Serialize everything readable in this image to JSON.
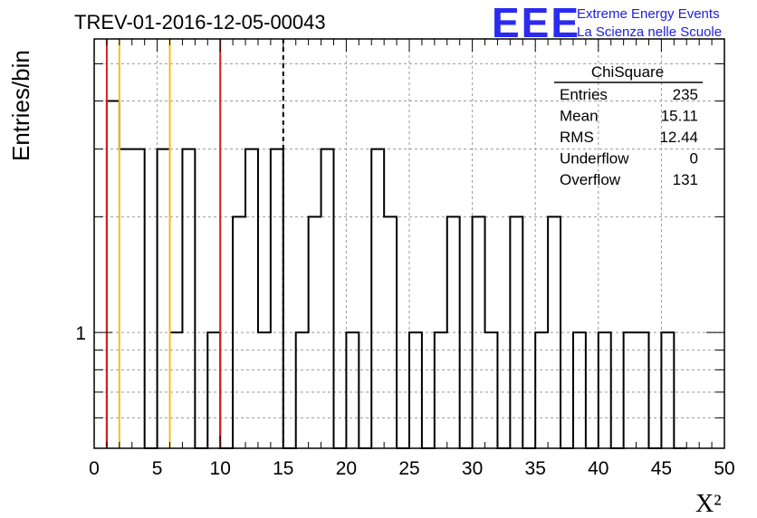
{
  "chart_data": {
    "type": "histogram",
    "title": "TREV-01-2016-12-05-00043",
    "xlabel": "X²",
    "ylabel": "Entries/bin",
    "xlim": [
      0,
      50
    ],
    "ylog": true,
    "ylim": [
      0.5,
      5.8
    ],
    "bin_width": 1,
    "x_ticks": [
      0,
      5,
      10,
      15,
      20,
      25,
      30,
      35,
      40,
      45,
      50
    ],
    "y_tick_labels": [
      {
        "value": 1,
        "label": "1"
      }
    ],
    "y_minor_ticks": [
      0.6,
      0.7,
      0.8,
      0.9,
      2,
      3,
      4,
      5
    ],
    "grid": true,
    "bin_lows": [
      1,
      2,
      3,
      4,
      5,
      6,
      7,
      8,
      9,
      10,
      11,
      12,
      13,
      14,
      15,
      16,
      17,
      18,
      19,
      20,
      21,
      22,
      23,
      24,
      25,
      26,
      27,
      28,
      29,
      30,
      31,
      32,
      33,
      34,
      35,
      36,
      37,
      38,
      39,
      40,
      41,
      42,
      43,
      44,
      45,
      46
    ],
    "counts": [
      4,
      3,
      3,
      0,
      3,
      1,
      3,
      0,
      1,
      0,
      2,
      3,
      1,
      3,
      0,
      1,
      2,
      3,
      0,
      1,
      0,
      3,
      2,
      0,
      1,
      0,
      1,
      2,
      0,
      2,
      1,
      0,
      2,
      0,
      1,
      2,
      0,
      1,
      0,
      1,
      0,
      1,
      1,
      0,
      1,
      0
    ],
    "vertical_lines": [
      {
        "x": 1,
        "color": "#d42020",
        "style": "solid"
      },
      {
        "x": 2,
        "color": "#f0c020",
        "style": "solid"
      },
      {
        "x": 6,
        "color": "#f0c020",
        "style": "solid"
      },
      {
        "x": 10,
        "color": "#d42020",
        "style": "solid"
      },
      {
        "x": 15,
        "color": "#000000",
        "style": "dashed"
      }
    ],
    "stats": {
      "name": "ChiSquare",
      "rows": [
        {
          "label": "Entries",
          "value": "235"
        },
        {
          "label": "Mean",
          "value": "15.11"
        },
        {
          "label": "RMS",
          "value": "12.44"
        },
        {
          "label": "Underflow",
          "value": "0"
        },
        {
          "label": "Overflow",
          "value": "131"
        }
      ]
    }
  },
  "logo": {
    "mark": "EEE",
    "line1": "Extreme Energy Events",
    "line2": "La Scienza nelle Scuole",
    "color": "#2a2af0"
  }
}
